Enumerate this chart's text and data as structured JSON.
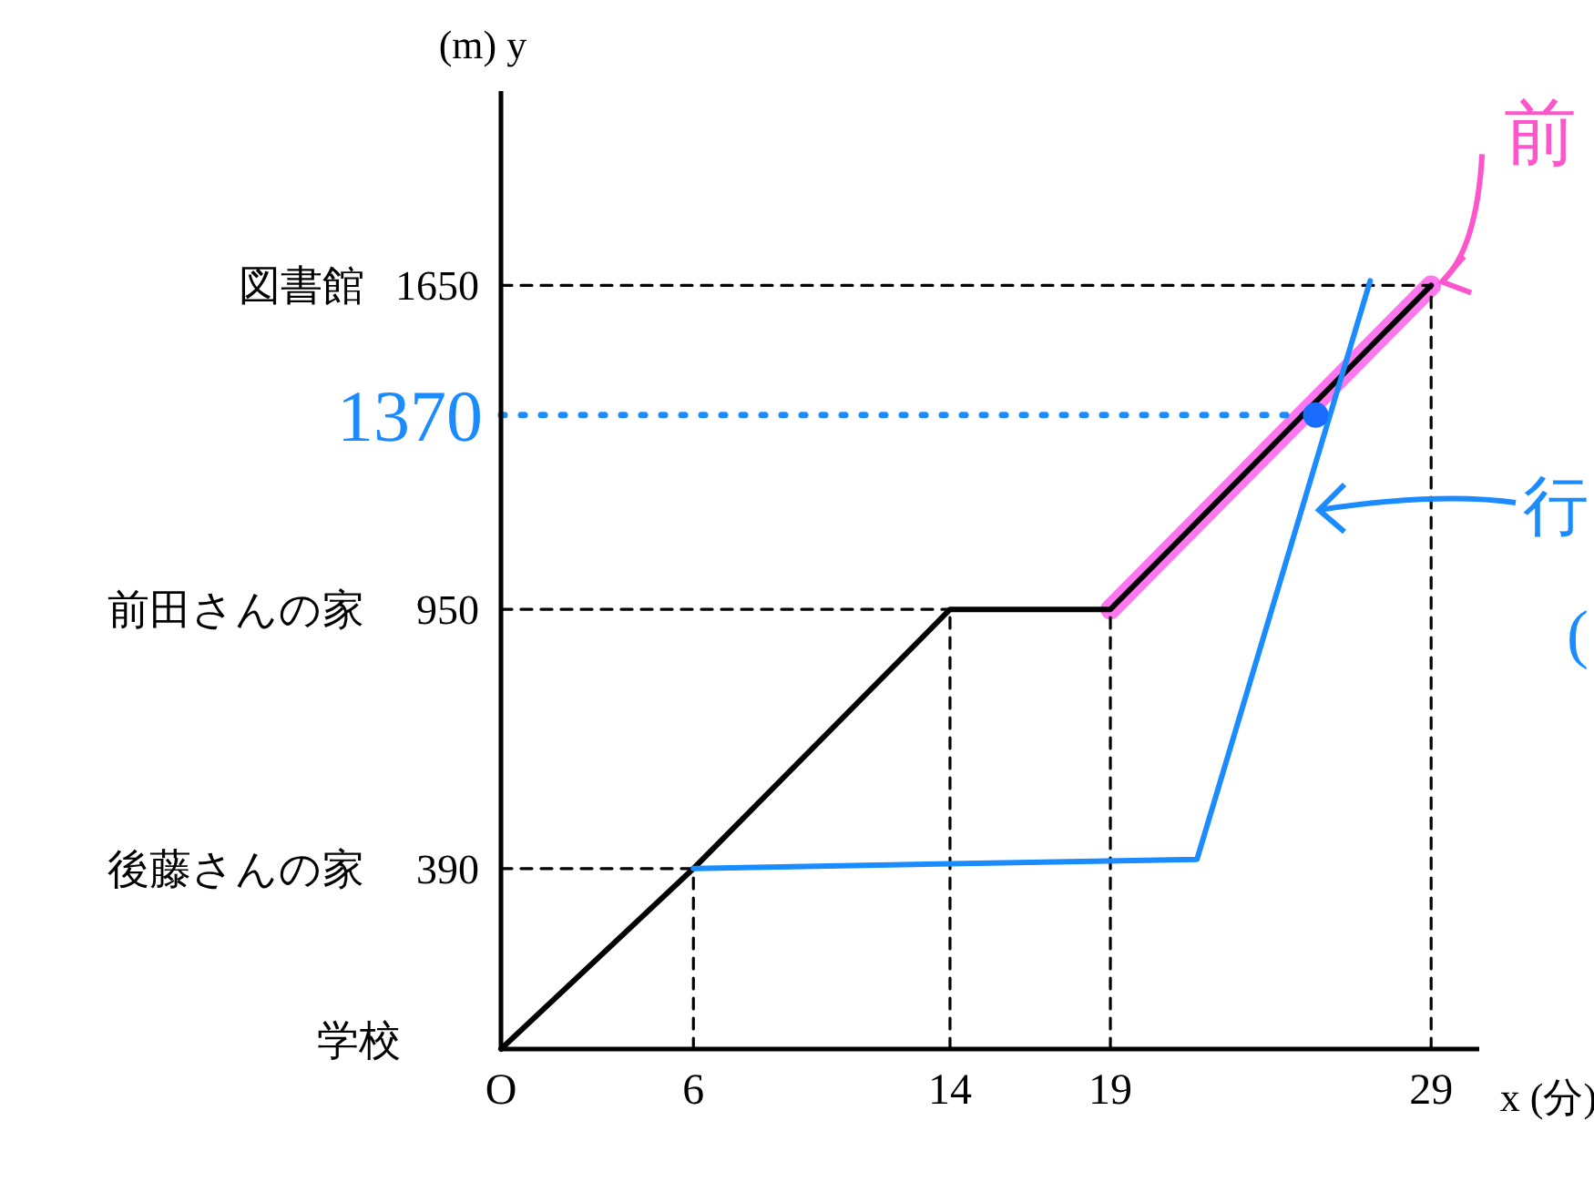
{
  "chart_data": {
    "type": "line",
    "xlabel": "x (分)",
    "ylabel": "(m) y",
    "xlim": [
      0,
      30.5
    ],
    "ylim": [
      0,
      2070
    ],
    "xticks": [
      {
        "value": 0,
        "label": "O"
      },
      6,
      14,
      19,
      29
    ],
    "yticks": [
      390,
      950,
      1650
    ],
    "grid": false,
    "series": [
      {
        "color": "#ff77ee",
        "x": [
          19,
          29
        ],
        "values": [
          950,
          1650
        ]
      },
      {
        "color": "#000000",
        "line_style": "dashed",
        "x": [
          6,
          6
        ],
        "values": [
          0,
          390
        ]
      },
      {
        "color": "#000000",
        "line_style": "dashed",
        "x": [
          14,
          14
        ],
        "values": [
          0,
          950
        ]
      },
      {
        "color": "#000000",
        "line_style": "dashed",
        "x": [
          19,
          19
        ],
        "values": [
          0,
          950
        ]
      },
      {
        "color": "#000000",
        "line_style": "dashed",
        "x": [
          29,
          29
        ],
        "values": [
          0,
          1650
        ]
      },
      {
        "color": "#000000",
        "line_style": "dashed",
        "x": [
          0,
          6
        ],
        "values": [
          390,
          390
        ]
      },
      {
        "color": "#000000",
        "line_style": "dashed",
        "x": [
          0,
          14
        ],
        "values": [
          950,
          950
        ]
      },
      {
        "color": "#000000",
        "line_style": "dashed",
        "x": [
          0,
          29
        ],
        "values": [
          1650,
          1650
        ]
      },
      {
        "color": "#1a8cff",
        "line_style": "dotted",
        "x": [
          0,
          25.4
        ],
        "values": [
          1370,
          1370
        ]
      },
      {
        "color": "#000000",
        "x": [
          0,
          6,
          14,
          19,
          29
        ],
        "values": [
          0,
          390,
          950,
          950,
          1650
        ]
      },
      {
        "color": "#1a8cff",
        "x": [
          6,
          21.7,
          27.1
        ],
        "values": [
          390,
          410,
          1660
        ]
      },
      {
        "type": "scatter",
        "color": "#1a6cff",
        "marker": "circle",
        "x": [
          25.4
        ],
        "values": [
          1370
        ]
      }
    ],
    "annotations": [
      "学校",
      "後藤さんの家",
      "前田さんの家",
      "図書館",
      {
        "text": "1370",
        "x": 0,
        "y": 1370
      },
      {
        "text": "前",
        "x": 29,
        "y": 1650
      },
      "行",
      "("
    ]
  }
}
